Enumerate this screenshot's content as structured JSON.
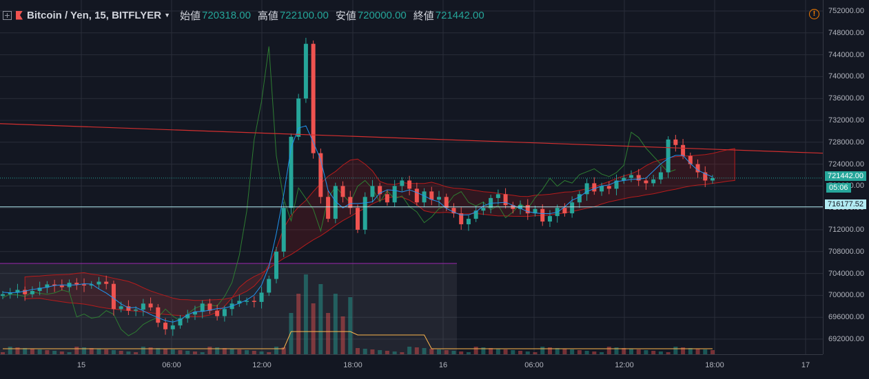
{
  "header": {
    "symbol": "Bitcoin / Yen, 15, BITFLYER",
    "open_label": "始値",
    "open_value": "720318.00",
    "high_label": "高値",
    "high_value": "722100.00",
    "low_label": "安値",
    "low_value": "720000.00",
    "close_label": "終値",
    "close_value": "721442.00"
  },
  "alert_icon": "!",
  "y_axis": {
    "labels": [
      "752000.00",
      "748000.00",
      "744000.00",
      "740000.00",
      "736000.00",
      "732000.00",
      "728000.00",
      "724000.00",
      "720000.00",
      "716000.00",
      "712000.00",
      "708000.00",
      "704000.00",
      "700000.00",
      "696000.00",
      "692000.00"
    ]
  },
  "x_axis": {
    "labels": [
      "15",
      "06:00",
      "12:00",
      "18:00",
      "16",
      "06:00",
      "12:00",
      "18:00",
      "17"
    ]
  },
  "price_tag": "721442.00",
  "countdown_tag": "05:06",
  "level_tag": "716177.52",
  "colors": {
    "background": "#131722",
    "up": "#26a69a",
    "down": "#ef5350",
    "cloud_green": "#2e7d32",
    "cloud_red": "#b71c1c",
    "trendline": "#d32f2f",
    "level_line": "#b2ebf2"
  },
  "chart_data": {
    "type": "candlestick",
    "x_ticks": [
      "15",
      "06:00",
      "12:00",
      "18:00",
      "16",
      "06:00",
      "12:00",
      "18:00",
      "17"
    ],
    "ylim": [
      690000,
      753000
    ],
    "last_close": 721442,
    "horizontal_level": 716177.52,
    "trendline": {
      "from": 731400,
      "to": 726000
    },
    "close_path": [
      700200,
      700500,
      701000,
      700200,
      700800,
      701400,
      702000,
      701800,
      701500,
      702300,
      702000,
      701800,
      702000,
      702500,
      702100,
      697500,
      698000,
      697200,
      697400,
      698500,
      697800,
      695000,
      693800,
      694500,
      695800,
      696500,
      697000,
      698500,
      697200,
      696200,
      697500,
      698500,
      699000,
      699000,
      698800,
      700500,
      703000,
      708000,
      716000,
      729000,
      736000,
      746000,
      726000,
      718000,
      714000,
      720000,
      718000,
      716000,
      712000,
      718000,
      720000,
      718500,
      717000,
      720000,
      721000,
      719500,
      717000,
      719000,
      717500,
      718000,
      716000,
      715000,
      713000,
      714000,
      715500,
      716000,
      717800,
      718500,
      716500,
      715800,
      716500,
      715000,
      715800,
      713500,
      714500,
      716000,
      715000,
      717000,
      718500,
      720500,
      719000,
      720000,
      719500,
      721000,
      721500,
      722000,
      721000,
      720500,
      721200,
      722500,
      728500,
      727500,
      725500,
      724000,
      722500,
      721000,
      721442
    ]
  }
}
